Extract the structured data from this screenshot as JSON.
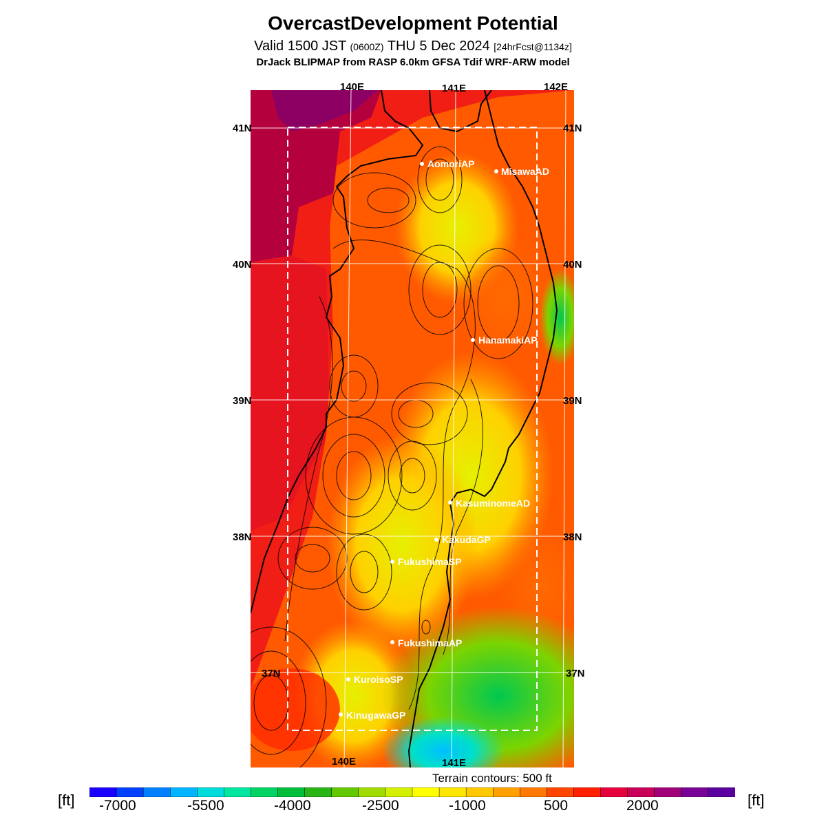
{
  "header": {
    "title": "OvercastDevelopment Potential",
    "valid_prefix": "Valid 1500 JST",
    "valid_z": "(0600Z)",
    "valid_date": "THU 5 Dec 2024",
    "valid_fcst": "[24hrFcst@1134z]",
    "model": "DrJack BLIPMAP from RASP 6.0km GFSA Tdif WRF-ARW model"
  },
  "map": {
    "lon_top": [
      "140E",
      "141E",
      "142E"
    ],
    "lon_bottom": [
      "140E",
      "141E"
    ],
    "lat_left": [
      "41N",
      "40N",
      "39N",
      "38N",
      "37N"
    ],
    "lat_right": [
      "41N",
      "40N",
      "39N",
      "38N",
      "37N"
    ],
    "stations": [
      {
        "name": "AomoriAP"
      },
      {
        "name": "MisawaAD"
      },
      {
        "name": "HanamakiAP"
      },
      {
        "name": "KasuminomeAD"
      },
      {
        "name": "KakudaGP"
      },
      {
        "name": "FukushimaSP"
      },
      {
        "name": "FukushimaAP"
      },
      {
        "name": "KuroisoSP"
      },
      {
        "name": "KinugawaGP"
      }
    ],
    "terrain_note": "Terrain contours: 500 ft"
  },
  "legend": {
    "unit_left": "[ft]",
    "unit_right": "[ft]",
    "ticks": [
      "-7000",
      "-5500",
      "-4000",
      "-2500",
      "-1000",
      "500",
      "2000"
    ],
    "colors": [
      "#1a00ff",
      "#0040ff",
      "#0080ff",
      "#00b4ff",
      "#00dcdc",
      "#00e6a0",
      "#00d264",
      "#00be3c",
      "#28b414",
      "#64c800",
      "#a0dc00",
      "#d2f000",
      "#ffff00",
      "#ffe600",
      "#ffc800",
      "#ffa000",
      "#ff7800",
      "#ff4600",
      "#ff1e00",
      "#e6003c",
      "#c8005a",
      "#a00078",
      "#780096",
      "#5a00a0"
    ]
  }
}
